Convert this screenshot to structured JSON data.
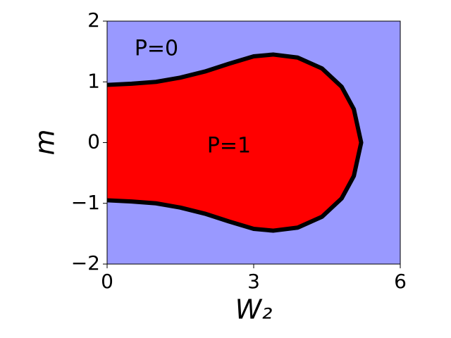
{
  "chart_data": {
    "type": "line",
    "xlabel": "W₂",
    "ylabel": "m",
    "annotations": [
      "P=0",
      "P=1"
    ],
    "background_color": "#9999ff",
    "region_color": "#ff0000",
    "x": [
      0,
      0.5,
      1,
      1.5,
      2,
      2.5,
      3,
      3.4,
      3.9,
      4.4,
      4.8,
      5.05,
      5.2,
      5.05,
      4.8,
      4.4,
      3.9,
      3.4,
      3,
      2.5,
      2,
      1.5,
      1,
      0.5,
      0
    ],
    "series": [
      {
        "color": "#000000",
        "values": [
          0.95,
          0.97,
          1.0,
          1.07,
          1.17,
          1.3,
          1.42,
          1.45,
          1.4,
          1.22,
          0.92,
          0.55,
          0,
          -0.55,
          -0.92,
          -1.22,
          -1.4,
          -1.45,
          -1.42,
          -1.3,
          -1.17,
          -1.07,
          -1.0,
          -0.97,
          -0.95
        ]
      }
    ],
    "xlim": [
      0,
      6
    ],
    "xticks": [
      0,
      3,
      6
    ],
    "ylim": [
      -2,
      2
    ],
    "yticks": [
      {
        "value": -2,
        "label": "−2"
      },
      {
        "value": -1,
        "label": "−1"
      },
      0,
      1,
      2
    ]
  }
}
